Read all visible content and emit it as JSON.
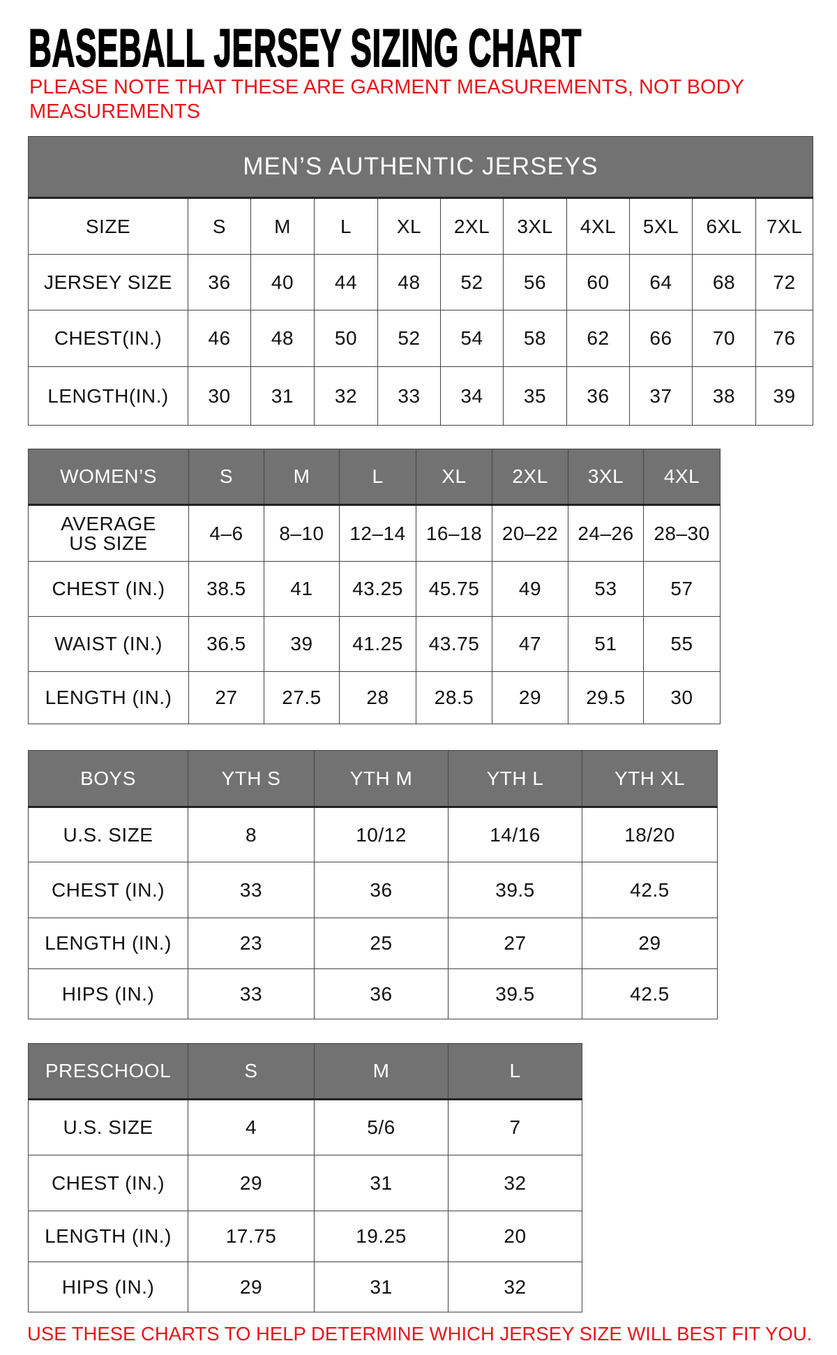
{
  "title": "BASEBALL JERSEY SIZING CHART",
  "note": "PLEASE NOTE THAT THESE ARE GARMENT MEASUREMENTS, NOT BODY MEASUREMENTS",
  "footer": "USE THESE CHARTS TO HELP DETERMINE WHICH JERSEY SIZE WILL BEST FIT YOU.",
  "colors": {
    "header_bg": "#727272",
    "accent_red": "#e8141b"
  },
  "tables": [
    {
      "id": "mens",
      "caption": "MEN’S AUTHENTIC JERSEYS",
      "header_row_grey": false,
      "header": [
        "SIZE",
        "S",
        "M",
        "L",
        "XL",
        "2XL",
        "3XL",
        "4XL",
        "5XL",
        "6XL",
        "7XL"
      ],
      "rows": [
        [
          "JERSEY SIZE",
          "36",
          "40",
          "44",
          "48",
          "52",
          "56",
          "60",
          "64",
          "68",
          "72"
        ],
        [
          "CHEST(IN.)",
          "46",
          "48",
          "50",
          "52",
          "54",
          "58",
          "62",
          "66",
          "70",
          "76"
        ],
        [
          "LENGTH(IN.)",
          "30",
          "31",
          "32",
          "33",
          "34",
          "35",
          "36",
          "37",
          "38",
          "39"
        ]
      ]
    },
    {
      "id": "womens",
      "header_row_grey": true,
      "header": [
        "WOMEN’S",
        "S",
        "M",
        "L",
        "XL",
        "2XL",
        "3XL",
        "4XL"
      ],
      "rows": [
        [
          "AVERAGE US SIZE",
          "4–6",
          "8–10",
          "12–14",
          "16–18",
          "20–22",
          "24–26",
          "28–30"
        ],
        [
          "CHEST (IN.)",
          "38.5",
          "41",
          "43.25",
          "45.75",
          "49",
          "53",
          "57"
        ],
        [
          "WAIST (IN.)",
          "36.5",
          "39",
          "41.25",
          "43.75",
          "47",
          "51",
          "55"
        ],
        [
          "LENGTH (IN.)",
          "27",
          "27.5",
          "28",
          "28.5",
          "29",
          "29.5",
          "30"
        ]
      ]
    },
    {
      "id": "boys",
      "header_row_grey": true,
      "header": [
        "BOYS",
        "YTH S",
        "YTH M",
        "YTH L",
        "YTH XL"
      ],
      "rows": [
        [
          "U.S. SIZE",
          "8",
          "10/12",
          "14/16",
          "18/20"
        ],
        [
          "CHEST (IN.)",
          "33",
          "36",
          "39.5",
          "42.5"
        ],
        [
          "LENGTH (IN.)",
          "23",
          "25",
          "27",
          "29"
        ],
        [
          "HIPS (IN.)",
          "33",
          "36",
          "39.5",
          "42.5"
        ]
      ]
    },
    {
      "id": "preschool",
      "header_row_grey": true,
      "header": [
        "PRESCHOOL",
        "S",
        "M",
        "L"
      ],
      "rows": [
        [
          "U.S. SIZE",
          "4",
          "5/6",
          "7"
        ],
        [
          "CHEST (IN.)",
          "29",
          "31",
          "32"
        ],
        [
          "LENGTH (IN.)",
          "17.75",
          "19.25",
          "20"
        ],
        [
          "HIPS (IN.)",
          "29",
          "31",
          "32"
        ]
      ]
    }
  ]
}
